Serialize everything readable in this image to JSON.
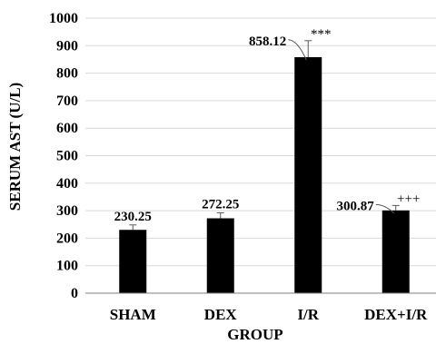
{
  "chart_data": {
    "type": "bar",
    "categories": [
      "SHAM",
      "DEX",
      "I/R",
      "DEX+I/R"
    ],
    "values": [
      230.25,
      272.25,
      858.12,
      300.87
    ],
    "data_labels": [
      "230.25",
      "272.25",
      "858.12",
      "300.87"
    ],
    "error": [
      18,
      20,
      60,
      18
    ],
    "significance": [
      "",
      "",
      "***",
      "+++"
    ],
    "xlabel": "GROUP",
    "ylabel": "SERUM AST (U/L)",
    "ylim": [
      0,
      1000
    ],
    "yticks": [
      0,
      100,
      200,
      300,
      400,
      500,
      600,
      700,
      800,
      900,
      1000
    ],
    "grid": true,
    "legend": "none",
    "colors": {
      "bar": "#000000",
      "grid": "#d9d9d9",
      "axis": "#7f7f7f"
    }
  }
}
